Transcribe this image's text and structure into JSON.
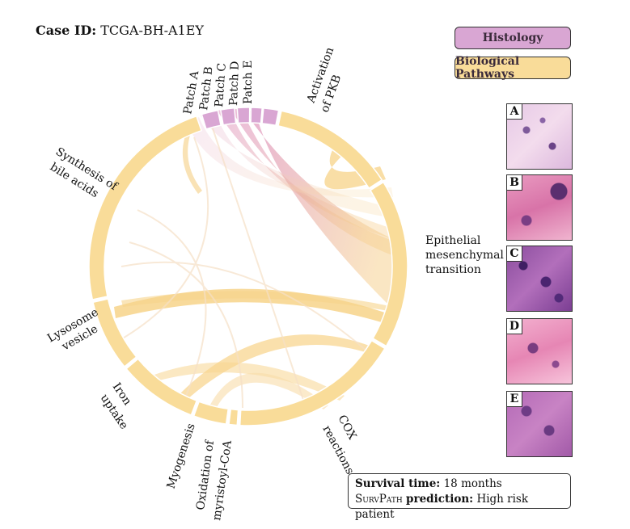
{
  "header": {
    "case_label": "Case ID:",
    "case_value": "TCGA-BH-A1EY"
  },
  "legend": {
    "histology": "Histology",
    "pathways": "Biological Pathways",
    "histology_color": "#d9a6d3",
    "pathways_color": "#f9dc99"
  },
  "patches": [
    "A",
    "B",
    "C",
    "D",
    "E"
  ],
  "chord": {
    "labels": {
      "patch_a": "Patch A",
      "patch_b": "Patch B",
      "patch_c": "Patch C",
      "patch_d": "Patch D",
      "patch_e": "Patch E",
      "pkb_1": "Activation",
      "pkb_2": "of PKB",
      "emt_1": "Epithelial",
      "emt_2": "mesenchymal",
      "emt_3": "transition",
      "cox_1": "COX",
      "cox_2": "reactions",
      "oxid_1": "Oxidation of",
      "oxid_2": "myristoyl-CoA",
      "myo": "Myogenesis",
      "iron_1": "Iron",
      "iron_2": "uptake",
      "lyso_1": "Lysosome",
      "lyso_2": "vesicle",
      "bile_1": "Synthesis of",
      "bile_2": "bile acids"
    }
  },
  "survival": {
    "time_label": "Survival time:",
    "time_value": "18 months",
    "model_name": "SurvPath",
    "prediction_label": "prediction:",
    "prediction_value": "High risk patient"
  }
}
